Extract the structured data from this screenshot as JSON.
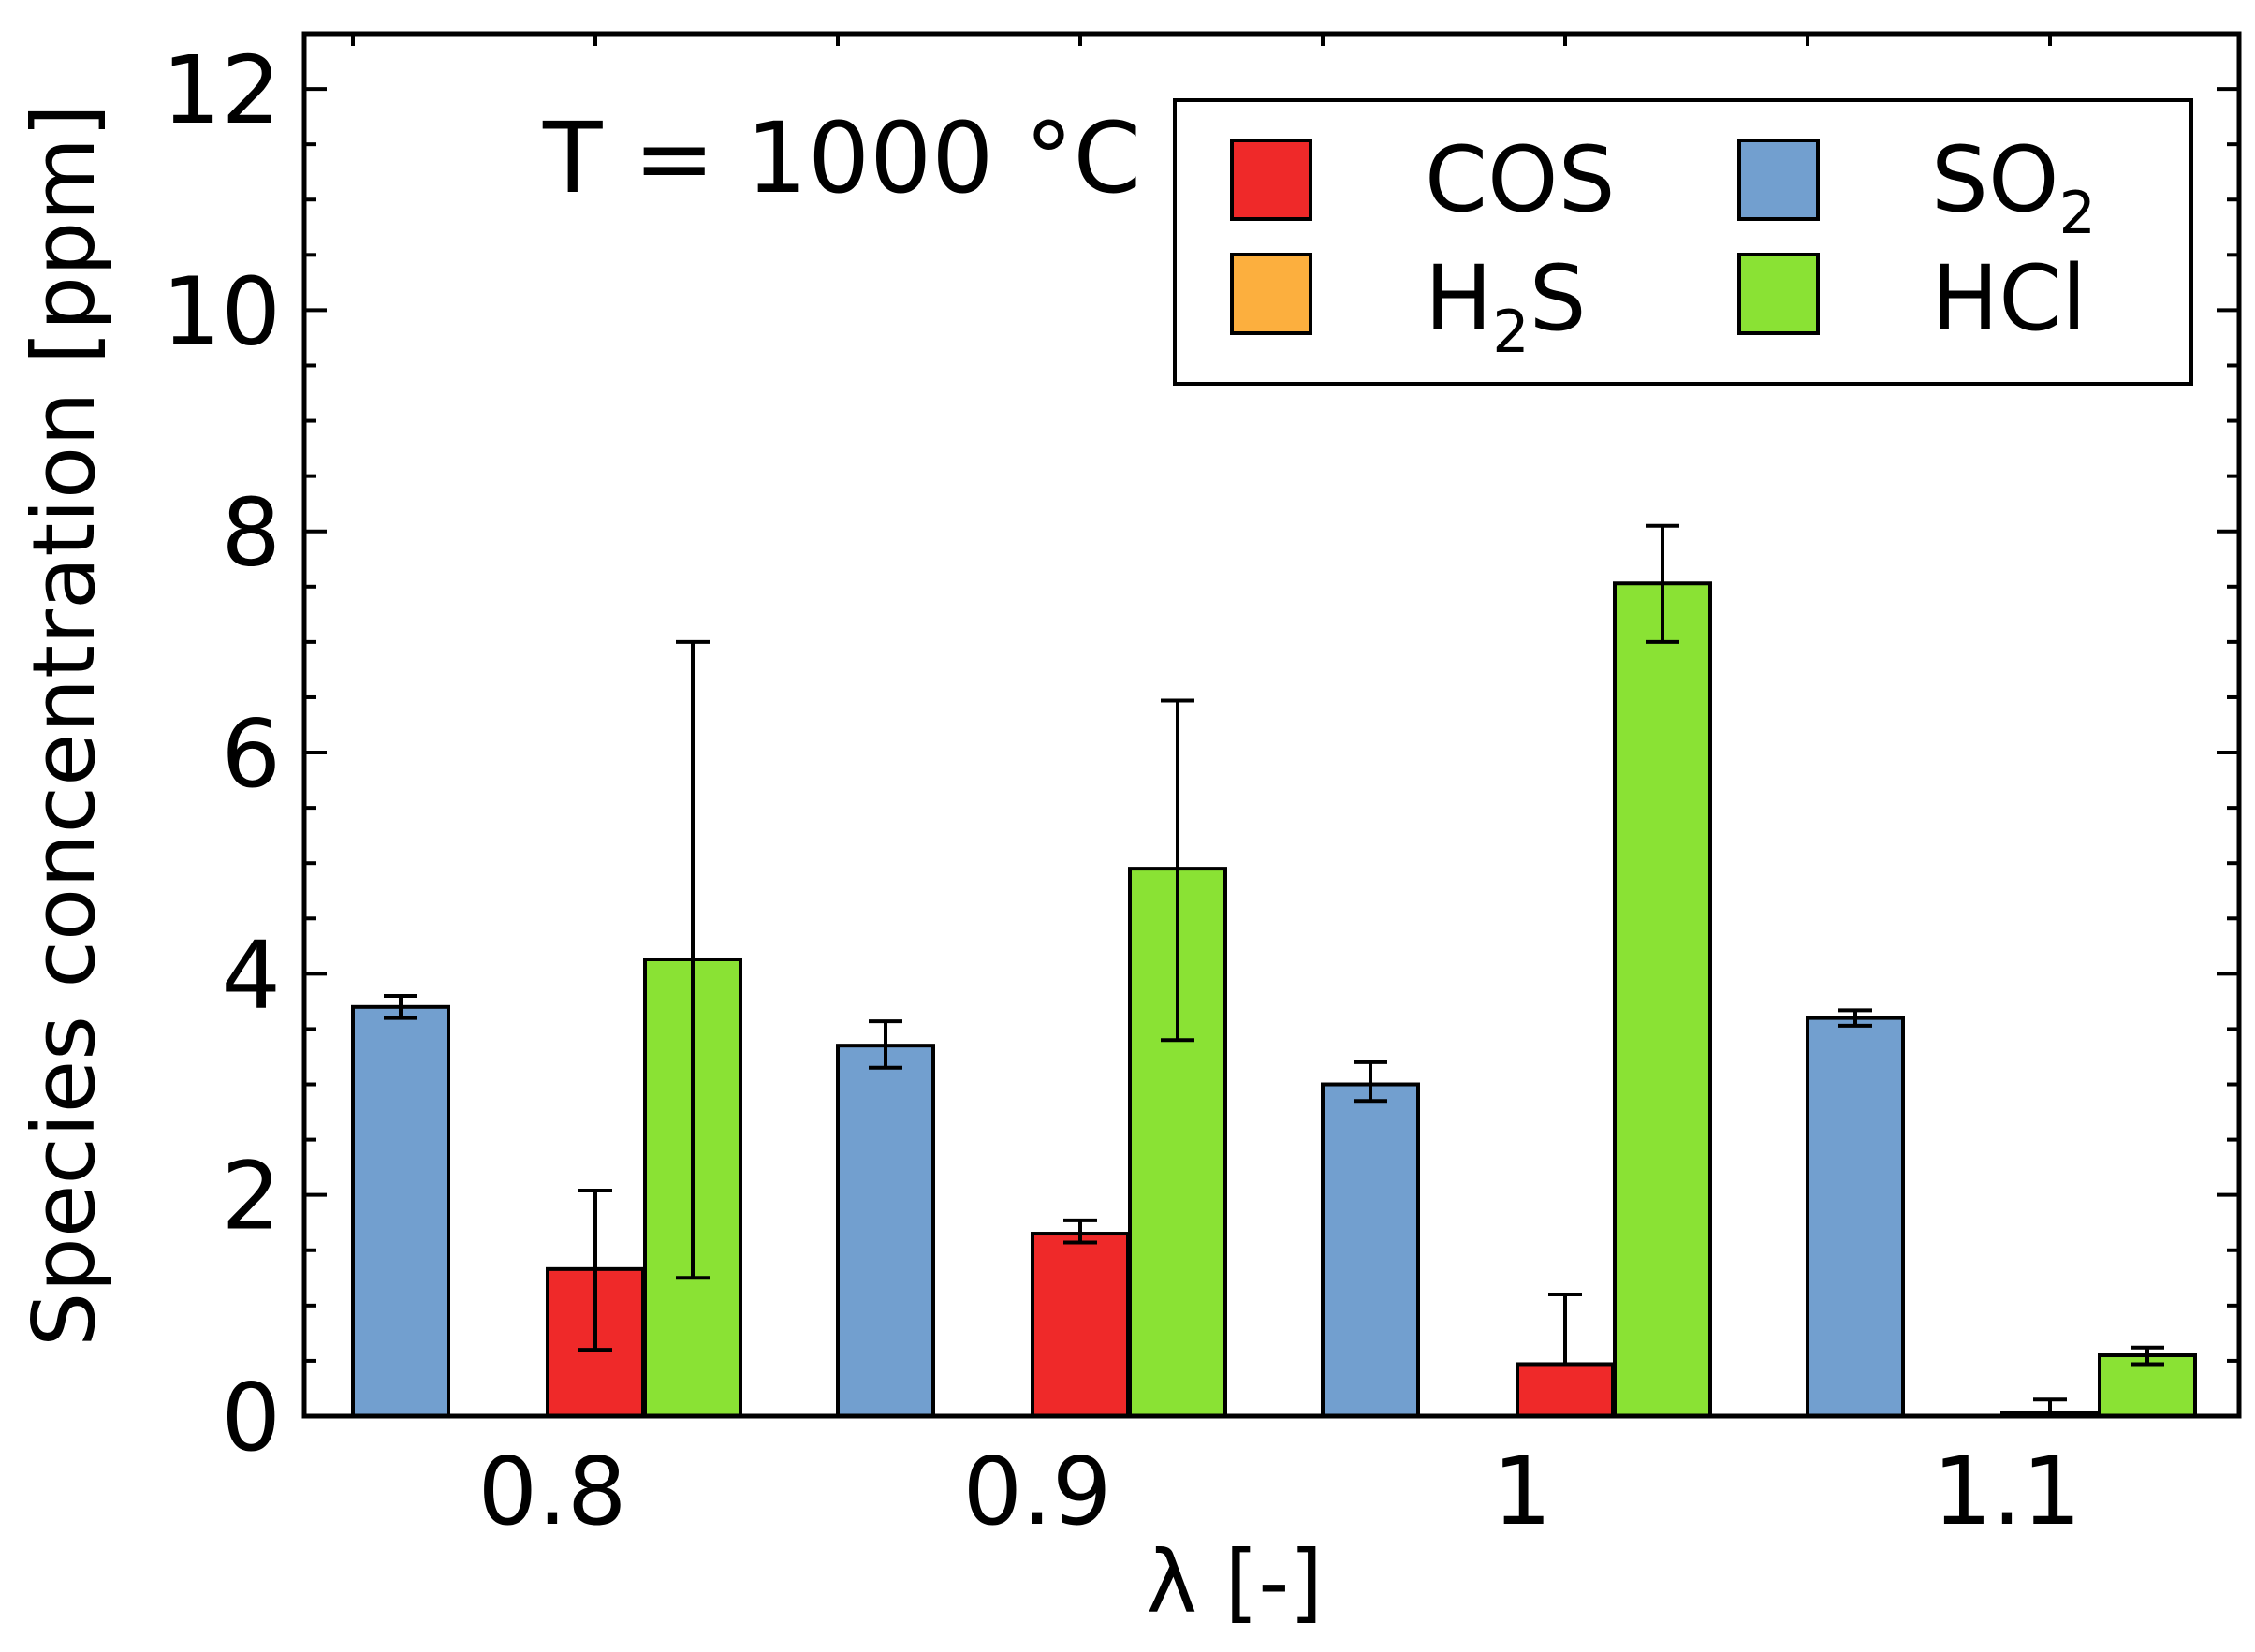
{
  "chart_data": {
    "type": "bar",
    "title": "",
    "annotation": "T = 1000 °C",
    "xlabel": "λ [-]",
    "ylabel": "Species concentration [ppm]",
    "ylim": [
      0,
      12.5
    ],
    "yticks": [
      "0",
      "2",
      "4",
      "6",
      "8",
      "10",
      "12"
    ],
    "categories": [
      "0.8",
      "0.9",
      "1",
      "1.1"
    ],
    "grid": false,
    "legend_position": "top-right",
    "series": [
      {
        "name": "SO2",
        "label_main": "SO",
        "label_sub": "2",
        "color": "#729fcf",
        "values": [
          3.7,
          3.35,
          3.0,
          3.6
        ],
        "err_low": [
          3.6,
          3.15,
          2.85,
          3.53
        ],
        "err_high": [
          3.8,
          3.57,
          3.2,
          3.67
        ]
      },
      {
        "name": "H2S",
        "label_main": "H",
        "label_sub": "2",
        "label_tail": "S",
        "color": "#fcaf3e",
        "values": [
          0,
          0,
          0,
          0
        ],
        "err_low": [
          null,
          null,
          null,
          null
        ],
        "err_high": [
          null,
          null,
          null,
          null
        ]
      },
      {
        "name": "COS",
        "label_main": "COS",
        "color": "#ef2929",
        "values": [
          1.33,
          1.65,
          0.47,
          0.03
        ],
        "err_low": [
          0.6,
          1.57,
          null,
          0.0
        ],
        "err_high": [
          2.04,
          1.77,
          1.1,
          0.15
        ]
      },
      {
        "name": "HCl",
        "label_main": "HCl",
        "color": "#8ae234",
        "values": [
          4.13,
          4.95,
          7.53,
          0.55
        ],
        "err_low": [
          1.25,
          3.4,
          7.0,
          0.47
        ],
        "err_high": [
          7.0,
          6.47,
          8.05,
          0.62
        ]
      }
    ]
  }
}
